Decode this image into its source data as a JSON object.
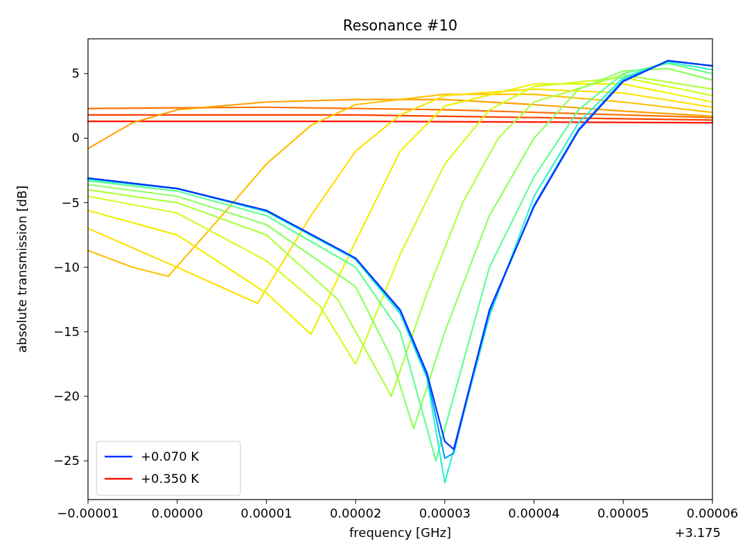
{
  "chart_data": {
    "type": "line",
    "title": "Resonance #10",
    "xlabel": "frequency [GHz]",
    "ylabel": "absolute transmission [dB]",
    "annotations": [
      "+3.175"
    ],
    "legend": "bottom left",
    "grid": false,
    "xlim": [
      -1e-05,
      6e-05
    ],
    "xticks": [
      {
        "value": -1e-05,
        "label": "−0.00001"
      },
      {
        "value": 0,
        "label": "0.00000"
      },
      {
        "value": 1e-05,
        "label": "0.00001"
      },
      {
        "value": 2e-05,
        "label": "0.00002"
      },
      {
        "value": 3e-05,
        "label": "0.00003"
      },
      {
        "value": 4e-05,
        "label": "0.00004"
      },
      {
        "value": 5e-05,
        "label": "0.00005"
      },
      {
        "value": 6e-05,
        "label": "0.00006"
      }
    ],
    "ylim": [
      -28,
      7.7
    ],
    "yticks": [
      {
        "value": -25,
        "label": "−25"
      },
      {
        "value": -20,
        "label": "−20"
      },
      {
        "value": -15,
        "label": "−15"
      },
      {
        "value": -10,
        "label": "−10"
      },
      {
        "value": -5,
        "label": "−5"
      },
      0,
      5
    ],
    "series": [
      {
        "name": "+0.350 K",
        "color": "#ff1000",
        "x": [
          -1e-05,
          2e-05,
          4e-05,
          6e-05
        ],
        "values": [
          1.3,
          1.3,
          1.25,
          1.2
        ]
      },
      {
        "color": "#ff4000",
        "x": [
          -1e-05,
          2e-05,
          4e-05,
          6e-05
        ],
        "values": [
          1.8,
          1.8,
          1.6,
          1.4
        ]
      },
      {
        "color": "#ff7000",
        "x": [
          -1e-05,
          1e-05,
          3e-05,
          5e-05,
          6e-05
        ],
        "values": [
          2.3,
          2.4,
          2.2,
          1.8,
          1.6
        ]
      },
      {
        "color": "#ffa000",
        "x": [
          -1e-05,
          -5e-06,
          0,
          1e-05,
          2e-05,
          3e-05,
          4e-05,
          5e-05,
          6e-05
        ],
        "values": [
          -0.8,
          1.2,
          2.2,
          2.8,
          3.0,
          3.0,
          2.6,
          2.1,
          1.7
        ]
      },
      {
        "color": "#ffc000",
        "x": [
          -1e-05,
          -5e-06,
          -1e-06,
          5e-06,
          1e-05,
          1.5e-05,
          2e-05,
          3e-05,
          4e-05,
          5e-05,
          6e-05
        ],
        "values": [
          -8.7,
          -10,
          -10.7,
          -6,
          -2,
          1,
          2.6,
          3.4,
          3.4,
          2.8,
          2.0
        ]
      },
      {
        "color": "#ffe000",
        "x": [
          -1e-05,
          0,
          9e-06,
          1.5e-05,
          2e-05,
          2.5e-05,
          3e-05,
          4e-05,
          5e-05,
          6e-05
        ],
        "values": [
          -7,
          -10,
          -12.8,
          -6,
          -1,
          1.8,
          3.3,
          3.8,
          3.5,
          2.4
        ]
      },
      {
        "color": "#f0f000",
        "x": [
          -1e-05,
          0,
          1e-05,
          1.5e-05,
          2e-05,
          2.5e-05,
          3e-05,
          4e-05,
          5e-05,
          6e-05
        ],
        "values": [
          -5.6,
          -7.5,
          -12,
          -15.2,
          -8,
          -1,
          2.5,
          4.2,
          4.2,
          2.8
        ]
      },
      {
        "color": "#d0ff20",
        "x": [
          -1e-05,
          0,
          1e-05,
          1.6e-05,
          2e-05,
          2.5e-05,
          3e-05,
          3.5e-05,
          4e-05,
          5e-05,
          6e-05
        ],
        "values": [
          -4.5,
          -5.8,
          -9.5,
          -13,
          -17.5,
          -9,
          -2,
          2.2,
          4.0,
          4.7,
          3.3
        ]
      },
      {
        "color": "#b0ff40",
        "x": [
          -1e-05,
          0,
          1e-05,
          1.8e-05,
          2.4e-05,
          2.8e-05,
          3.2e-05,
          3.6e-05,
          4e-05,
          5e-05,
          6e-05
        ],
        "values": [
          -4.0,
          -5.0,
          -7.5,
          -12.5,
          -20,
          -12,
          -5,
          0,
          2.8,
          4.9,
          3.8
        ]
      },
      {
        "color": "#90ff60",
        "x": [
          -1e-05,
          0,
          1e-05,
          2e-05,
          2.4e-05,
          2.65e-05,
          3e-05,
          3.5e-05,
          4e-05,
          4.5e-05,
          5e-05,
          5.5e-05,
          6e-05
        ],
        "values": [
          -3.6,
          -4.5,
          -6.7,
          -11.5,
          -17,
          -22.5,
          -15,
          -6,
          0,
          3.8,
          5.2,
          5.4,
          4.5
        ]
      },
      {
        "color": "#60ff90",
        "x": [
          -1e-05,
          0,
          1e-05,
          2e-05,
          2.5e-05,
          2.9e-05,
          3.5e-05,
          4e-05,
          4.5e-05,
          5e-05,
          5.5e-05,
          6e-05
        ],
        "values": [
          -3.3,
          -4.1,
          -6.0,
          -10,
          -15,
          -25,
          -10,
          -3,
          2.2,
          5.0,
          5.8,
          5.0
        ]
      },
      {
        "color": "#30f0d0",
        "x": [
          -1e-05,
          0,
          1e-05,
          2e-05,
          2.5e-05,
          2.8e-05,
          3e-05,
          3.3e-05,
          3.5e-05,
          4e-05,
          4.5e-05,
          5e-05,
          5.5e-05,
          6e-05
        ],
        "values": [
          -3.2,
          -3.9,
          -5.7,
          -9.4,
          -13.6,
          -18.6,
          -26.7,
          -19,
          -13.8,
          -4.5,
          1.2,
          4.7,
          5.9,
          5.3
        ]
      },
      {
        "color": "#00a0ff",
        "x": [
          -1e-05,
          0,
          1e-05,
          2e-05,
          2.5e-05,
          2.8e-05,
          3e-05,
          3.1e-05,
          3.3e-05,
          3.5e-05,
          4e-05,
          4.5e-05,
          5e-05,
          5.5e-05,
          6e-05
        ],
        "values": [
          -3.1,
          -3.9,
          -5.6,
          -9.3,
          -13.4,
          -18.4,
          -24.8,
          -24.4,
          -18.8,
          -13.5,
          -5.2,
          0.7,
          4.5,
          6.0,
          5.6
        ]
      },
      {
        "name": "+0.070 K",
        "color": "#0033ff",
        "x": [
          -1e-05,
          0,
          1e-05,
          2e-05,
          2.5e-05,
          2.8e-05,
          3e-05,
          3.1e-05,
          3.3e-05,
          3.5e-05,
          4e-05,
          4.5e-05,
          5e-05,
          5.5e-05,
          6e-05
        ],
        "values": [
          -3.1,
          -3.9,
          -5.6,
          -9.3,
          -13.3,
          -18.2,
          -23.5,
          -24.1,
          -18.7,
          -13.3,
          -5.3,
          0.6,
          4.4,
          6.0,
          5.6
        ]
      }
    ]
  }
}
